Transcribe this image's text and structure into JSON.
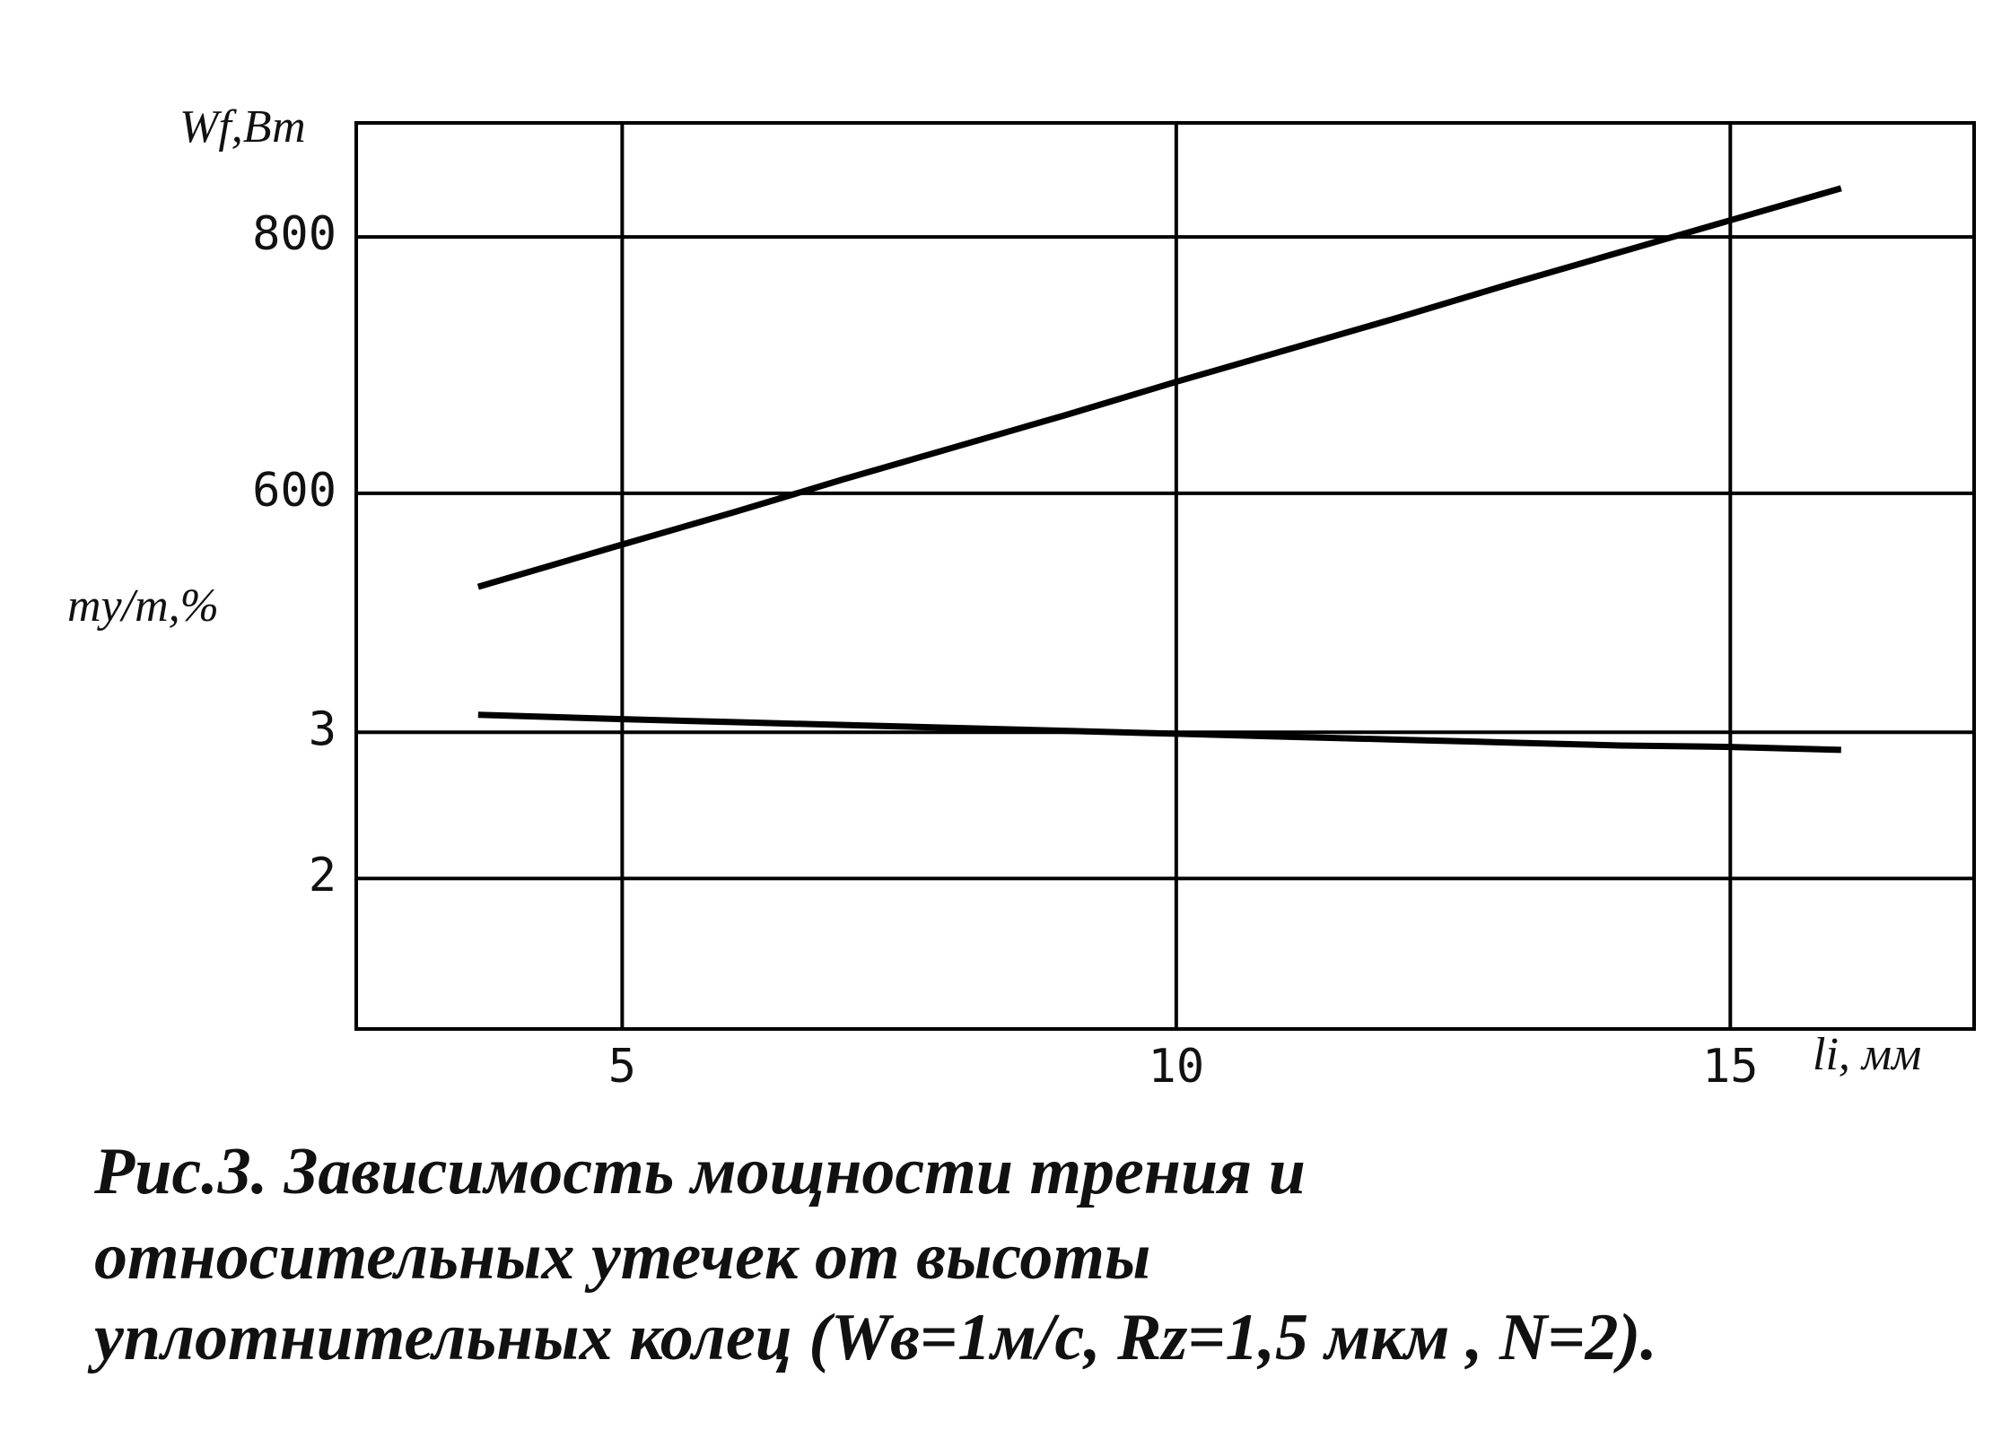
{
  "chart_data": {
    "type": "line",
    "xlabel": "li, мм",
    "ylabel": "Wf,Вт",
    "y2label": "my/m,%",
    "x": [
      3.7,
      5,
      6,
      7,
      8,
      9,
      10,
      11,
      12,
      13,
      14,
      15,
      16
    ],
    "series": [
      {
        "name": "Wf",
        "color": "#000000",
        "values": [
          527,
          560,
          585,
          611,
          636,
          661,
          687,
          712,
          737,
          763,
          788,
          813,
          838
        ]
      },
      {
        "name": "my/m",
        "color": "#000000",
        "axis": "y2",
        "values": [
          3.12,
          3.09,
          3.07,
          3.05,
          3.03,
          3.01,
          2.99,
          2.97,
          2.95,
          2.93,
          2.91,
          2.9,
          2.88
        ]
      }
    ],
    "xlim": [
      2.6,
      17.2
    ],
    "xticks": [
      5,
      10,
      15
    ],
    "ylim": [
      182,
      889
    ],
    "yticks": [
      600,
      800
    ],
    "y2lim": [
      0.97,
      7.17
    ],
    "y2ticks": [
      2,
      3
    ],
    "grid": true,
    "caption": [
      "Рис.3. Зависимость мощности трения и",
      "относительных утечек от высоты",
      "уплотнительных колец  (Wв=1м/с, Rz=1,5 мкм , N=2)."
    ]
  }
}
